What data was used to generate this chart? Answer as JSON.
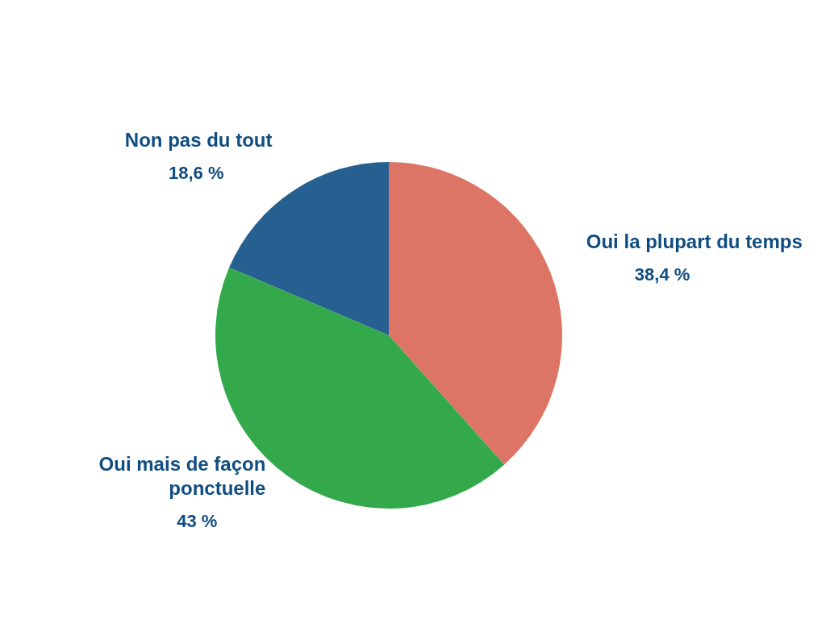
{
  "chart_data": {
    "type": "pie",
    "categories": [
      "Oui la plupart du temps",
      "Oui mais de façon ponctuelle",
      "Non pas du tout"
    ],
    "values": [
      38.4,
      43,
      18.6
    ],
    "value_labels": [
      "38,4 %",
      "43 %",
      "18,6 %"
    ],
    "colors": [
      "#dd7566",
      "#34a94b",
      "#266091"
    ]
  }
}
